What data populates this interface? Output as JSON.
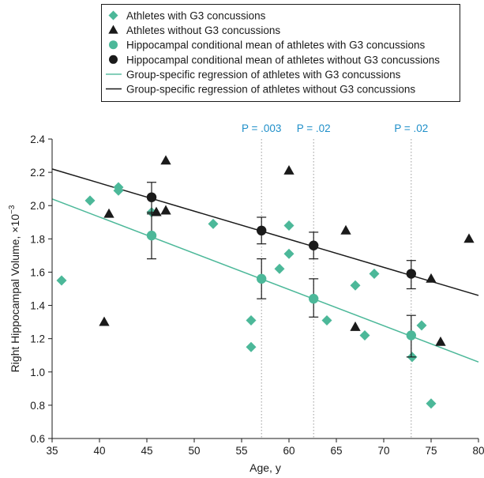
{
  "chart_data": {
    "type": "scatter",
    "xlabel": "Age, y",
    "ylabel": "Right Hippocampal Volume, ×10",
    "ylabel_exponent": "−3",
    "xlim": [
      35,
      80
    ],
    "ylim": [
      0.6,
      2.4
    ],
    "x_ticks": [
      35,
      40,
      45,
      50,
      55,
      60,
      65,
      70,
      75,
      80
    ],
    "y_ticks": [
      "0.6",
      "0.8",
      "1.0",
      "1.2",
      "1.4",
      "1.6",
      "1.8",
      "2.0",
      "2.2",
      "2.4"
    ],
    "grid": false,
    "legend_position": "top",
    "colors": {
      "with": "#4cb899",
      "without": "#1a1a1a",
      "pvalue": "#1f8fc9",
      "vline": "#9a9a9a"
    },
    "legend": [
      {
        "label": "Athletes with G3 concussions",
        "marker": "diamond",
        "color": "#4cb899"
      },
      {
        "label": "Athletes without G3 concussions",
        "marker": "triangle",
        "color": "#1a1a1a"
      },
      {
        "label": "Hippocampal conditional mean of athletes with G3 concussions",
        "marker": "circle",
        "color": "#4cb899"
      },
      {
        "label": "Hippocampal conditional mean of athletes without G3 concussions",
        "marker": "circle",
        "color": "#1a1a1a"
      },
      {
        "label": "Group-specific regression of athletes with G3 concussions",
        "marker": "line",
        "color": "#4cb899"
      },
      {
        "label": "Group-specific regression of athletes without G3 concussions",
        "marker": "line",
        "color": "#1a1a1a"
      }
    ],
    "series": [
      {
        "key": "with_points",
        "marker": "diamond",
        "color": "#4cb899",
        "x": [
          36,
          39,
          42,
          42,
          45.5,
          52,
          56,
          56,
          59,
          60,
          60,
          64,
          67,
          68,
          69,
          73,
          74,
          75
        ],
        "y": [
          1.55,
          2.03,
          2.11,
          2.09,
          1.96,
          1.89,
          1.31,
          1.15,
          1.62,
          1.71,
          1.88,
          1.31,
          1.52,
          1.22,
          1.59,
          1.09,
          1.28,
          0.81
        ]
      },
      {
        "key": "without_points",
        "marker": "triangle",
        "color": "#1a1a1a",
        "x": [
          40.5,
          41,
          46,
          47,
          47,
          60,
          66,
          67,
          75,
          76,
          79
        ],
        "y": [
          1.3,
          1.95,
          1.96,
          1.97,
          2.27,
          2.21,
          1.85,
          1.27,
          1.56,
          1.18,
          1.8
        ]
      },
      {
        "key": "with_means",
        "marker": "circle",
        "color": "#4cb899",
        "x": [
          45.5,
          57.1,
          62.6,
          72.9
        ],
        "y": [
          1.82,
          1.56,
          1.44,
          1.22
        ],
        "err_low": [
          1.68,
          1.44,
          1.33,
          1.09
        ],
        "err_high": [
          1.96,
          1.68,
          1.56,
          1.34
        ]
      },
      {
        "key": "without_means",
        "marker": "circle",
        "color": "#1a1a1a",
        "x": [
          45.5,
          57.1,
          62.6,
          72.9
        ],
        "y": [
          2.05,
          1.85,
          1.76,
          1.59
        ],
        "err_low": [
          1.95,
          1.77,
          1.68,
          1.5
        ],
        "err_high": [
          2.14,
          1.93,
          1.84,
          1.67
        ]
      }
    ],
    "regression_lines": [
      {
        "key": "with_reg",
        "color": "#4cb899",
        "x": [
          35,
          80
        ],
        "y": [
          2.04,
          1.06
        ]
      },
      {
        "key": "without_reg",
        "color": "#1a1a1a",
        "x": [
          35,
          80
        ],
        "y": [
          2.22,
          1.46
        ]
      }
    ],
    "vlines": [
      57.1,
      62.6,
      72.9
    ],
    "annotations": [
      {
        "x": 57.1,
        "label": "P = .003"
      },
      {
        "x": 62.6,
        "label": "P = .02"
      },
      {
        "x": 72.9,
        "label": "P = .02"
      }
    ]
  }
}
